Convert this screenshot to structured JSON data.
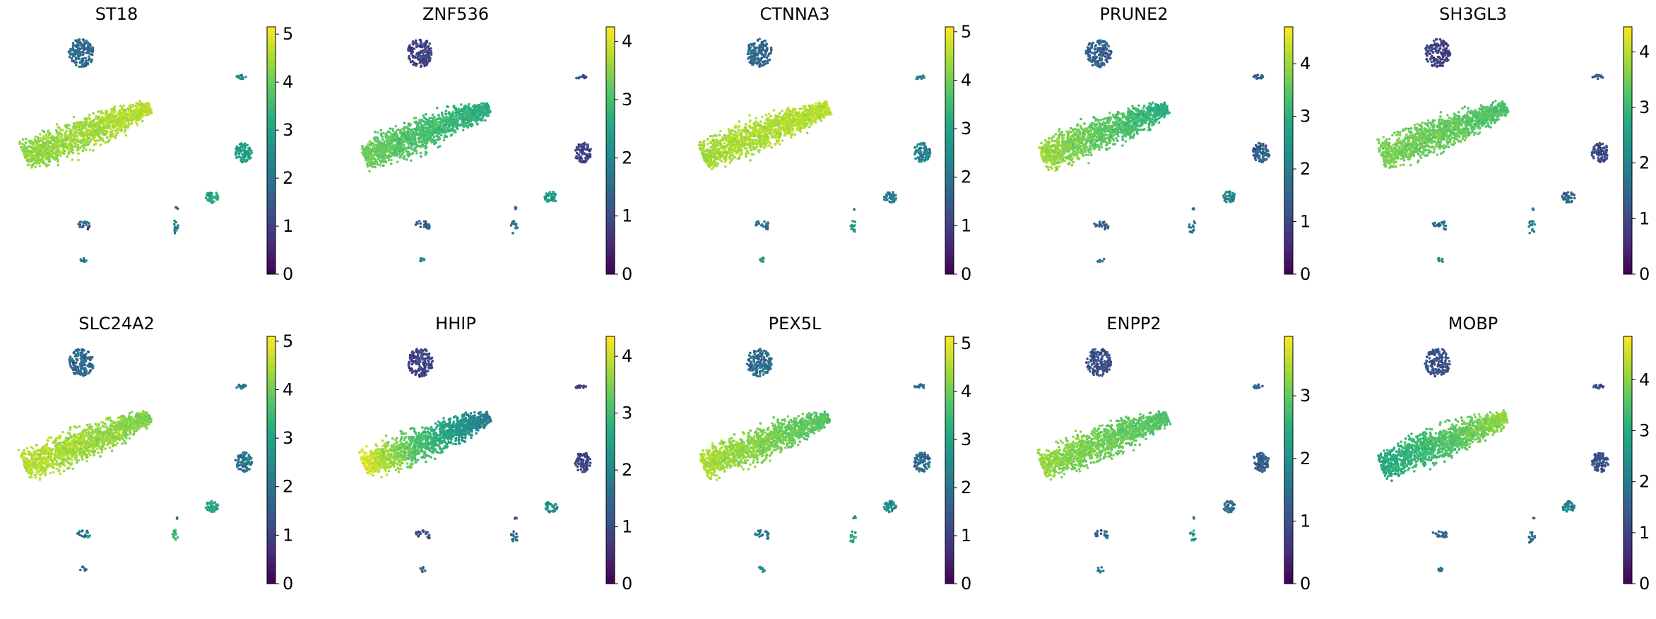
{
  "chart_data": {
    "type": "scatter",
    "description_kind": "umap-feature-plots",
    "colormap": "viridis",
    "colormap_stops": [
      "#440154",
      "#472c7a",
      "#3b518b",
      "#2c718e",
      "#21908d",
      "#27ad81",
      "#5cc863",
      "#aadc32",
      "#fde725"
    ],
    "panels": [
      {
        "title": "ST18",
        "vmin": 0,
        "vmax": 5.15,
        "ticks": [
          0,
          1,
          2,
          3,
          4,
          5
        ],
        "main_level": 0.86,
        "gradient": 0.04,
        "cluster_levels": [
          0.35,
          0.45,
          0.55,
          0.6,
          0.35,
          0.45,
          0.3,
          0.4,
          0.25
        ]
      },
      {
        "title": "ZNF536",
        "vmin": 0,
        "vmax": 4.25,
        "ticks": [
          0,
          1,
          2,
          3,
          4
        ],
        "main_level": 0.7,
        "gradient": -0.08,
        "cluster_levels": [
          0.2,
          0.25,
          0.2,
          0.55,
          0.3,
          0.4,
          0.35,
          0.4,
          0.3
        ]
      },
      {
        "title": "CTNNA3",
        "vmin": 0,
        "vmax": 5.1,
        "ticks": [
          0,
          1,
          2,
          3,
          4,
          5
        ],
        "main_level": 0.88,
        "gradient": 0.02,
        "cluster_levels": [
          0.35,
          0.45,
          0.45,
          0.45,
          0.4,
          0.55,
          0.35,
          0.55,
          0.3
        ]
      },
      {
        "title": "PRUNE2",
        "vmin": 0,
        "vmax": 4.7,
        "ticks": [
          0,
          1,
          2,
          3,
          4
        ],
        "main_level": 0.74,
        "gradient": -0.12,
        "cluster_levels": [
          0.3,
          0.35,
          0.3,
          0.45,
          0.3,
          0.4,
          0.35,
          0.4,
          0.3
        ]
      },
      {
        "title": "SH3GL3",
        "vmin": 0,
        "vmax": 4.45,
        "ticks": [
          0,
          1,
          2,
          3,
          4
        ],
        "main_level": 0.76,
        "gradient": -0.04,
        "cluster_levels": [
          0.2,
          0.3,
          0.25,
          0.35,
          0.35,
          0.45,
          0.4,
          0.5,
          0.4
        ]
      },
      {
        "title": "SLC24A2",
        "vmin": 0,
        "vmax": 5.1,
        "ticks": [
          0,
          1,
          2,
          3,
          4,
          5
        ],
        "main_level": 0.85,
        "gradient": -0.05,
        "cluster_levels": [
          0.35,
          0.4,
          0.4,
          0.6,
          0.35,
          0.65,
          0.45,
          0.4,
          0.55
        ]
      },
      {
        "title": "HHIP",
        "vmin": 0,
        "vmax": 4.35,
        "ticks": [
          0,
          1,
          2,
          3,
          4
        ],
        "main_level": 0.68,
        "gradient": -0.28,
        "cluster_levels": [
          0.2,
          0.2,
          0.2,
          0.5,
          0.25,
          0.35,
          0.25,
          0.35,
          0.25
        ]
      },
      {
        "title": "PEX5L",
        "vmin": 0,
        "vmax": 5.15,
        "ticks": [
          0,
          1,
          2,
          3,
          4,
          5
        ],
        "main_level": 0.8,
        "gradient": -0.08,
        "cluster_levels": [
          0.35,
          0.35,
          0.35,
          0.5,
          0.4,
          0.6,
          0.45,
          0.5,
          0.35
        ]
      },
      {
        "title": "ENPP2",
        "vmin": 0,
        "vmax": 3.95,
        "ticks": [
          0,
          1,
          2,
          3
        ],
        "main_level": 0.78,
        "gradient": -0.06,
        "cluster_levels": [
          0.25,
          0.3,
          0.3,
          0.35,
          0.3,
          0.55,
          0.4,
          0.4,
          0.35
        ]
      },
      {
        "title": "MOBP",
        "vmin": 0,
        "vmax": 4.85,
        "ticks": [
          0,
          1,
          2,
          3,
          4
        ],
        "main_level": 0.72,
        "gradient": 0.12,
        "cluster_levels": [
          0.25,
          0.3,
          0.25,
          0.45,
          0.3,
          0.35,
          0.3,
          0.4,
          0.3
        ]
      }
    ]
  }
}
